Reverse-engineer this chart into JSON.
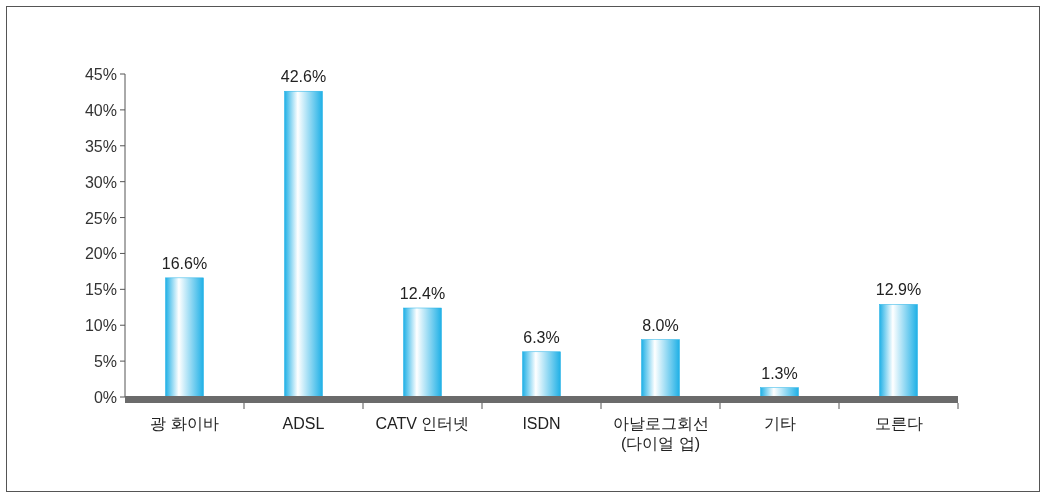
{
  "chart_data": {
    "type": "bar",
    "categories": [
      "광 화이바",
      "ADSL",
      "CATV 인터넷",
      "ISDN",
      "아날로그회선\n(다이얼 업)",
      "기타",
      "모른다"
    ],
    "values": [
      16.6,
      42.6,
      12.4,
      6.3,
      8.0,
      1.3,
      12.9
    ],
    "value_labels": [
      "16.6%",
      "42.6%",
      "12.4%",
      "6.3%",
      "8.0%",
      "1.3%",
      "12.9%"
    ],
    "color": "#1fb0e6",
    "ylim": [
      0,
      45
    ],
    "yticks": [
      {
        "value": 0,
        "label": "0%"
      },
      {
        "value": 5,
        "label": "5%"
      },
      {
        "value": 10,
        "label": "10%"
      },
      {
        "value": 15,
        "label": "15%"
      },
      {
        "value": 20,
        "label": "20%"
      },
      {
        "value": 25,
        "label": "25%"
      },
      {
        "value": 30,
        "label": "30%"
      },
      {
        "value": 35,
        "label": "35%"
      },
      {
        "value": 40,
        "label": "40%"
      },
      {
        "value": 45,
        "label": "45%"
      }
    ],
    "grid": false
  }
}
